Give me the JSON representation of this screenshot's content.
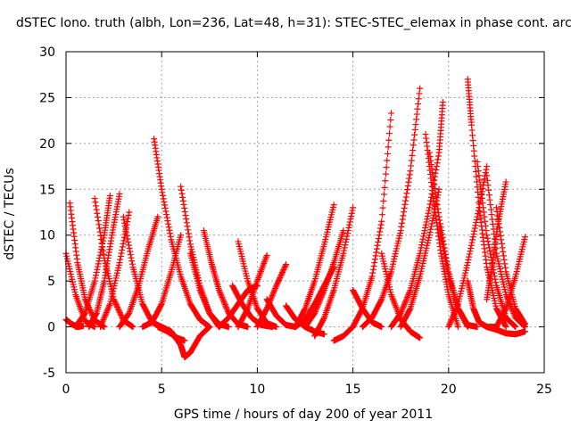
{
  "chart_data": {
    "type": "scatter",
    "title": "dSTEC Iono. truth (albh, Lon=236, Lat=48, h=31): STEC-STEC_elemax in phase cont. arc",
    "xlabel": "GPS time / hours of day 200 of year 2011",
    "ylabel": "dSTEC  / TECUs",
    "xlim": [
      0,
      25
    ],
    "ylim": [
      -5,
      30
    ],
    "xticks": [
      0,
      5,
      10,
      15,
      20,
      25
    ],
    "yticks": [
      -5,
      0,
      5,
      10,
      15,
      20,
      25,
      30
    ],
    "grid": true,
    "marker": "plus",
    "color": "#ff0000",
    "arcs": [
      {
        "x": [
          0.0,
          0.5,
          1.0,
          1.5
        ],
        "y": [
          8.0,
          3.5,
          0.6,
          0.0
        ]
      },
      {
        "x": [
          0.0,
          0.3,
          0.6,
          0.9
        ],
        "y": [
          0.8,
          0.3,
          0.0,
          0.1
        ]
      },
      {
        "x": [
          0.2,
          0.6,
          1.0,
          1.5,
          2.0
        ],
        "y": [
          13.5,
          7.0,
          3.0,
          0.7,
          0.0
        ]
      },
      {
        "x": [
          0.5,
          1.0,
          1.5,
          2.0,
          2.3
        ],
        "y": [
          0.0,
          1.5,
          5.0,
          10.0,
          14.3
        ]
      },
      {
        "x": [
          1.2,
          1.6,
          2.0,
          2.4,
          2.8
        ],
        "y": [
          0.0,
          1.5,
          5.0,
          10.0,
          14.5
        ]
      },
      {
        "x": [
          1.5,
          2.0,
          2.5,
          3.0,
          3.5
        ],
        "y": [
          14.0,
          7.5,
          3.0,
          0.7,
          0.0
        ]
      },
      {
        "x": [
          1.8,
          2.3,
          2.8,
          3.3
        ],
        "y": [
          0.0,
          2.5,
          7.0,
          12.5
        ]
      },
      {
        "x": [
          2.8,
          3.3,
          3.8,
          4.3,
          4.8
        ],
        "y": [
          0.0,
          1.5,
          4.5,
          8.5,
          12.0
        ]
      },
      {
        "x": [
          3.0,
          3.5,
          4.0,
          4.5,
          5.0
        ],
        "y": [
          12.0,
          6.5,
          2.5,
          0.5,
          0.0
        ]
      },
      {
        "x": [
          4.0,
          4.5,
          5.0,
          5.5,
          6.0
        ],
        "y": [
          0.0,
          0.5,
          2.5,
          6.0,
          10.0
        ]
      },
      {
        "x": [
          4.6,
          5.0,
          5.5,
          6.0,
          6.5,
          7.0,
          7.5
        ],
        "y": [
          20.5,
          15.0,
          9.5,
          5.5,
          2.5,
          0.8,
          0.0
        ]
      },
      {
        "x": [
          4.8,
          5.3,
          5.8,
          6.2
        ],
        "y": [
          0.0,
          -0.5,
          -1.2,
          -1.5
        ]
      },
      {
        "x": [
          5.0,
          5.5,
          6.0,
          6.2,
          6.5,
          7.0,
          7.5
        ],
        "y": [
          0.0,
          -0.5,
          -2.0,
          -3.3,
          -2.8,
          -1.0,
          0.0
        ]
      },
      {
        "x": [
          6.0,
          6.5,
          7.0,
          7.5,
          8.0
        ],
        "y": [
          15.3,
          9.0,
          4.5,
          1.5,
          0.0
        ]
      },
      {
        "x": [
          6.5,
          7.0,
          7.5,
          8.0,
          8.5
        ],
        "y": [
          8.0,
          4.0,
          1.5,
          0.3,
          0.0
        ]
      },
      {
        "x": [
          7.2,
          7.6,
          8.0,
          8.5,
          9.0,
          9.5
        ],
        "y": [
          10.5,
          7.0,
          4.0,
          1.5,
          0.3,
          0.0
        ]
      },
      {
        "x": [
          8.0,
          8.5,
          9.0,
          9.5,
          10.0
        ],
        "y": [
          0.0,
          1.0,
          2.5,
          4.0,
          4.5
        ]
      },
      {
        "x": [
          8.7,
          9.2,
          9.7,
          10.2,
          10.8
        ],
        "y": [
          4.5,
          2.5,
          1.0,
          0.2,
          0.0
        ]
      },
      {
        "x": [
          9.0,
          9.5,
          10.0,
          10.5,
          11.0
        ],
        "y": [
          9.3,
          5.0,
          2.0,
          0.4,
          0.0
        ]
      },
      {
        "x": [
          9.0,
          9.5,
          10.0,
          10.5
        ],
        "y": [
          0.0,
          2.0,
          5.0,
          7.8
        ]
      },
      {
        "x": [
          10.5,
          11.0,
          11.5,
          12.0
        ],
        "y": [
          3.0,
          1.2,
          0.2,
          0.0
        ]
      },
      {
        "x": [
          10.0,
          10.5,
          11.0,
          11.5
        ],
        "y": [
          0.0,
          2.0,
          4.5,
          6.8
        ]
      },
      {
        "x": [
          11.5,
          12.0,
          12.5,
          13.0,
          13.5
        ],
        "y": [
          2.3,
          0.8,
          0.0,
          -0.5,
          -0.8
        ]
      },
      {
        "x": [
          12.0,
          12.5,
          13.0,
          13.5,
          14.0
        ],
        "y": [
          0.0,
          0.8,
          2.5,
          4.5,
          6.5
        ]
      },
      {
        "x": [
          12.0,
          12.5,
          13.0,
          13.5,
          14.0
        ],
        "y": [
          0.0,
          2.0,
          5.0,
          9.0,
          13.3
        ]
      },
      {
        "x": [
          12.5,
          13.0,
          13.5,
          14.0,
          14.5
        ],
        "y": [
          0.0,
          1.5,
          4.0,
          7.0,
          10.5
        ]
      },
      {
        "x": [
          13.0,
          13.5,
          14.0,
          14.5,
          15.0
        ],
        "y": [
          -1.0,
          1.0,
          4.0,
          8.0,
          13.0
        ]
      },
      {
        "x": [
          14.0,
          14.5,
          15.0,
          15.5,
          16.0,
          16.5,
          17.0
        ],
        "y": [
          -1.5,
          -1.0,
          0.0,
          2.0,
          5.5,
          11.5,
          23.3
        ]
      },
      {
        "x": [
          15.0,
          15.5,
          16.0,
          16.5
        ],
        "y": [
          4.0,
          2.0,
          0.5,
          0.0
        ]
      },
      {
        "x": [
          15.5,
          16.0,
          16.5,
          17.0,
          17.5,
          18.0,
          18.5
        ],
        "y": [
          0.0,
          1.0,
          3.0,
          6.0,
          10.5,
          17.0,
          26.0
        ]
      },
      {
        "x": [
          16.5,
          17.0,
          17.5,
          18.0,
          18.5
        ],
        "y": [
          8.0,
          3.5,
          0.8,
          -0.5,
          -1.2
        ]
      },
      {
        "x": [
          17.0,
          17.5,
          18.0,
          18.5,
          19.0,
          19.5,
          19.7
        ],
        "y": [
          0.0,
          1.5,
          4.0,
          8.0,
          13.0,
          19.0,
          24.5
        ]
      },
      {
        "x": [
          17.5,
          18.0,
          18.5,
          19.0,
          19.5
        ],
        "y": [
          0.0,
          2.0,
          5.5,
          10.0,
          15.0
        ]
      },
      {
        "x": [
          18.8,
          19.2,
          19.6,
          20.0,
          20.5
        ],
        "y": [
          21.0,
          14.0,
          8.0,
          3.5,
          0.0
        ]
      },
      {
        "x": [
          19.0,
          19.5,
          20.0,
          20.5,
          21.0
        ],
        "y": [
          19.0,
          12.0,
          6.0,
          2.0,
          0.0
        ]
      },
      {
        "x": [
          19.5,
          20.0,
          20.5,
          21.0,
          21.5
        ],
        "y": [
          11.0,
          5.5,
          2.0,
          0.2,
          0.0
        ]
      },
      {
        "x": [
          20.0,
          20.5,
          21.0,
          21.5,
          22.0
        ],
        "y": [
          0.0,
          2.5,
          7.0,
          12.0,
          17.5
        ]
      },
      {
        "x": [
          21.0,
          21.2,
          21.6,
          22.0,
          22.5,
          23.0
        ],
        "y": [
          27.0,
          22.0,
          13.0,
          6.5,
          2.0,
          0.0
        ]
      },
      {
        "x": [
          21.0,
          21.3,
          21.6,
          22.0,
          22.5
        ],
        "y": [
          5.0,
          2.0,
          0.5,
          0.0,
          0.0
        ]
      },
      {
        "x": [
          21.5,
          22.0,
          22.5,
          23.0,
          23.5
        ],
        "y": [
          18.0,
          10.0,
          4.5,
          1.0,
          0.0
        ]
      },
      {
        "x": [
          22.0,
          22.5,
          23.0,
          23.5,
          24.0
        ],
        "y": [
          16.5,
          8.0,
          3.5,
          1.0,
          0.0
        ]
      },
      {
        "x": [
          22.0,
          22.3,
          22.6,
          23.0
        ],
        "y": [
          3.0,
          7.0,
          11.5,
          15.8
        ]
      },
      {
        "x": [
          22.5,
          23.0,
          23.5,
          24.0
        ],
        "y": [
          13.0,
          6.0,
          2.0,
          0.3
        ]
      },
      {
        "x": [
          22.5,
          23.0,
          23.5,
          24.0
        ],
        "y": [
          0.0,
          2.0,
          5.5,
          9.8
        ]
      },
      {
        "x": [
          22.0,
          22.5,
          23.0,
          23.5,
          24.0
        ],
        "y": [
          0.0,
          -0.3,
          -0.7,
          -0.8,
          -0.5
        ]
      }
    ]
  }
}
